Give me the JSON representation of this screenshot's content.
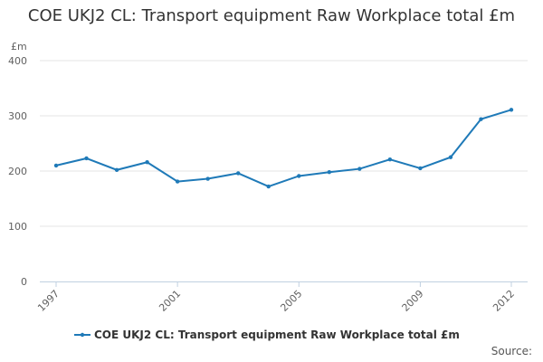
{
  "chart_data": {
    "type": "line",
    "title": "COE UKJ2 CL: Transport equipment Raw Workplace total £m",
    "ylabel": "£m",
    "xlabel": "",
    "x": [
      1997,
      1998,
      1999,
      2000,
      2001,
      2002,
      2003,
      2004,
      2005,
      2006,
      2007,
      2008,
      2009,
      2010,
      2011,
      2012
    ],
    "x_tick_labels": [
      "1997",
      "2001",
      "2005",
      "2009",
      "2012"
    ],
    "y_tick_labels": [
      "0",
      "100",
      "200",
      "300",
      "400"
    ],
    "ylim": [
      0,
      400
    ],
    "grid": true,
    "legend_position": "bottom",
    "series": [
      {
        "name": "COE UKJ2 CL: Transport equipment Raw Workplace total £m",
        "color": "#1f7ab8",
        "values": [
          210,
          223,
          202,
          216,
          181,
          186,
          196,
          172,
          191,
          198,
          204,
          221,
          205,
          225,
          294,
          311
        ]
      }
    ]
  },
  "source_label": "Source:"
}
